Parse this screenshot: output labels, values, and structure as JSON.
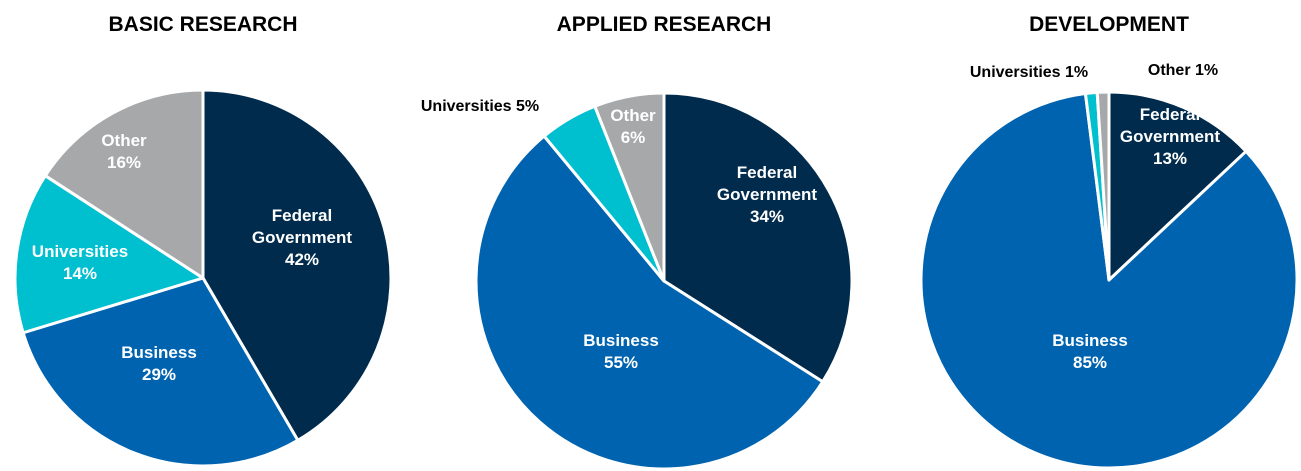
{
  "chart_data": [
    {
      "type": "pie",
      "title": "BASIC RESEARCH",
      "slices": [
        {
          "label_lines": [
            "Federal",
            "Government",
            "42%"
          ],
          "value": 42,
          "color": "#002b4c"
        },
        {
          "label_lines": [
            "Business",
            "29%"
          ],
          "value": 29,
          "color": "#0063b0"
        },
        {
          "label_lines": [
            "Universities",
            "14%"
          ],
          "value": 14,
          "color": "#00c0d0"
        },
        {
          "label_lines": [
            "Other",
            "16%"
          ],
          "value": 16,
          "color": "#a6a8aa"
        }
      ]
    },
    {
      "type": "pie",
      "title": "APPLIED RESEARCH",
      "slices": [
        {
          "label_lines": [
            "Federal",
            "Government",
            "34%"
          ],
          "value": 34,
          "color": "#002b4c"
        },
        {
          "label_lines": [
            "Business",
            "55%"
          ],
          "value": 55,
          "color": "#0063b0"
        },
        {
          "label_lines": [
            "Universities 5%"
          ],
          "value": 5,
          "color": "#00c0d0"
        },
        {
          "label_lines": [
            "Other",
            "6%"
          ],
          "value": 6,
          "color": "#a6a8aa"
        }
      ]
    },
    {
      "type": "pie",
      "title": "DEVELOPMENT",
      "slices": [
        {
          "label_lines": [
            "Federal",
            "Government",
            "13%"
          ],
          "value": 13,
          "color": "#002b4c"
        },
        {
          "label_lines": [
            "Business",
            "85%"
          ],
          "value": 85,
          "color": "#0063b0"
        },
        {
          "label_lines": [
            "Universities 1%"
          ],
          "value": 1,
          "color": "#00c0d0"
        },
        {
          "label_lines": [
            "Other 1%"
          ],
          "value": 1,
          "color": "#a6a8aa"
        }
      ]
    }
  ]
}
